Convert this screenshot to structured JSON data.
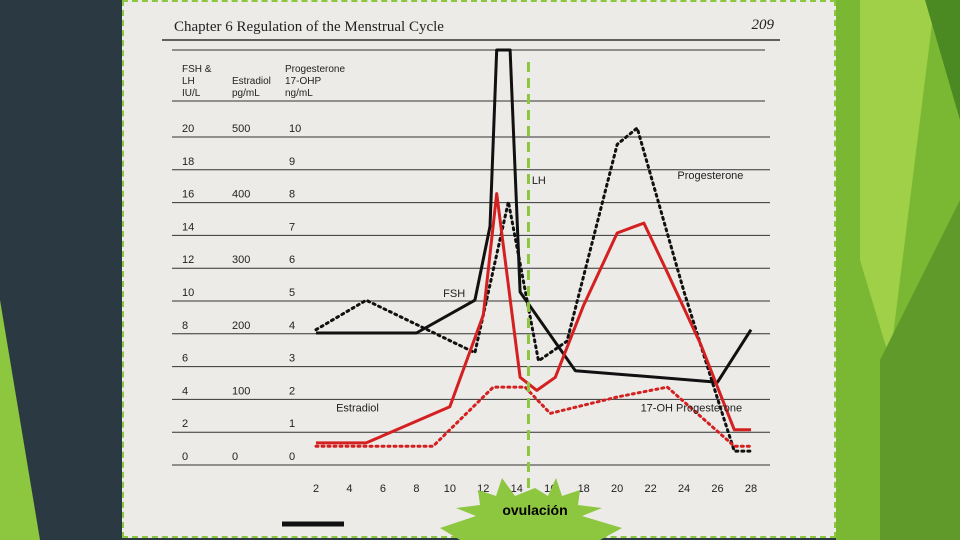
{
  "header": {
    "chapter_title": "Chapter 6   Regulation of the Menstrual Cycle",
    "page_number": "209"
  },
  "annotation": {
    "ovulation_label": "ovulación"
  },
  "chart_data": {
    "type": "line",
    "axis_headers": [
      [
        "FSH &",
        "LH",
        "IU/L"
      ],
      [
        "Estradiol",
        "pg/mL"
      ],
      [
        "Progesterone",
        "17-OHP",
        "ng/mL"
      ]
    ],
    "y_ticks": {
      "fsh_lh": [
        "20",
        "18",
        "16",
        "14",
        "12",
        "10",
        "8",
        "6",
        "4",
        "2",
        "0"
      ],
      "estradiol": [
        "500",
        "",
        "400",
        "",
        "300",
        "",
        "200",
        "",
        "100",
        "",
        "0"
      ],
      "progesterone": [
        "10",
        "9",
        "8",
        "7",
        "6",
        "5",
        "4",
        "3",
        "2",
        "1",
        "0"
      ]
    },
    "x": [
      2,
      4,
      6,
      8,
      10,
      12,
      14,
      16,
      18,
      20,
      22,
      24,
      26,
      28
    ],
    "x_ticks": [
      "2",
      "4",
      "6",
      "8",
      "10",
      "12",
      "14",
      "16",
      "18",
      "20",
      "22",
      "24",
      "26",
      "28"
    ],
    "xlim": [
      2,
      28
    ],
    "ylim_fsh_lh": [
      0,
      20
    ],
    "series": [
      {
        "name": "LH",
        "axis": "fsh_lh",
        "color": "#111111",
        "style": "solid",
        "points": [
          [
            2,
            7.5
          ],
          [
            8,
            7.5
          ],
          [
            11.5,
            9.5
          ],
          [
            12.4,
            14
          ],
          [
            12.8,
            26
          ],
          [
            13.6,
            26
          ],
          [
            14.2,
            10
          ],
          [
            17.5,
            5.2
          ],
          [
            26,
            4.5
          ],
          [
            28,
            7.7
          ]
        ]
      },
      {
        "name": "FSH",
        "axis": "fsh_lh",
        "color": "#111111",
        "style": "dotted",
        "points": [
          [
            2,
            7.7
          ],
          [
            5,
            9.5
          ],
          [
            11.5,
            6.3
          ],
          [
            13.5,
            15.5
          ],
          [
            15.3,
            5.8
          ],
          [
            17,
            7
          ],
          [
            20,
            19
          ],
          [
            21.2,
            20
          ],
          [
            24,
            10
          ],
          [
            26,
            3.5
          ],
          [
            27,
            0.3
          ],
          [
            28,
            0.3
          ]
        ]
      },
      {
        "name": "Estradiol",
        "axis": "estradiol",
        "color": "#d42020",
        "style": "solid",
        "points": [
          [
            2,
            20
          ],
          [
            5,
            20
          ],
          [
            10,
            75
          ],
          [
            12,
            215
          ],
          [
            12.8,
            400
          ],
          [
            14.2,
            120
          ],
          [
            15.2,
            100
          ],
          [
            16.3,
            120
          ],
          [
            18,
            230
          ],
          [
            20,
            340
          ],
          [
            21.6,
            355
          ],
          [
            23,
            280
          ],
          [
            25,
            170
          ],
          [
            27,
            40
          ],
          [
            28,
            40
          ]
        ]
      },
      {
        "name": "17-OH Progesterone",
        "axis": "progesterone",
        "color": "#d42020",
        "style": "dotted",
        "points": [
          [
            2,
            0.3
          ],
          [
            9,
            0.3
          ],
          [
            12.6,
            2.1
          ],
          [
            14.5,
            2.1
          ],
          [
            16,
            1.3
          ],
          [
            20,
            1.8
          ],
          [
            23,
            2.1
          ],
          [
            25,
            1.2
          ],
          [
            27,
            0.3
          ],
          [
            28,
            0.3
          ]
        ]
      }
    ],
    "series_labels": [
      {
        "text": "LH",
        "x": 14.9,
        "y": 16.6
      },
      {
        "text": "FSH",
        "x": 9.6,
        "y": 9.7
      },
      {
        "text": "Progesterone",
        "x": 23.6,
        "y": 16.9
      },
      {
        "text": "Estradiol",
        "x": 3.2,
        "y": 2.7
      },
      {
        "text": "17-OH Progesterone",
        "x": 21.4,
        "y": 2.7
      }
    ],
    "ovulation_day": 14.7
  }
}
